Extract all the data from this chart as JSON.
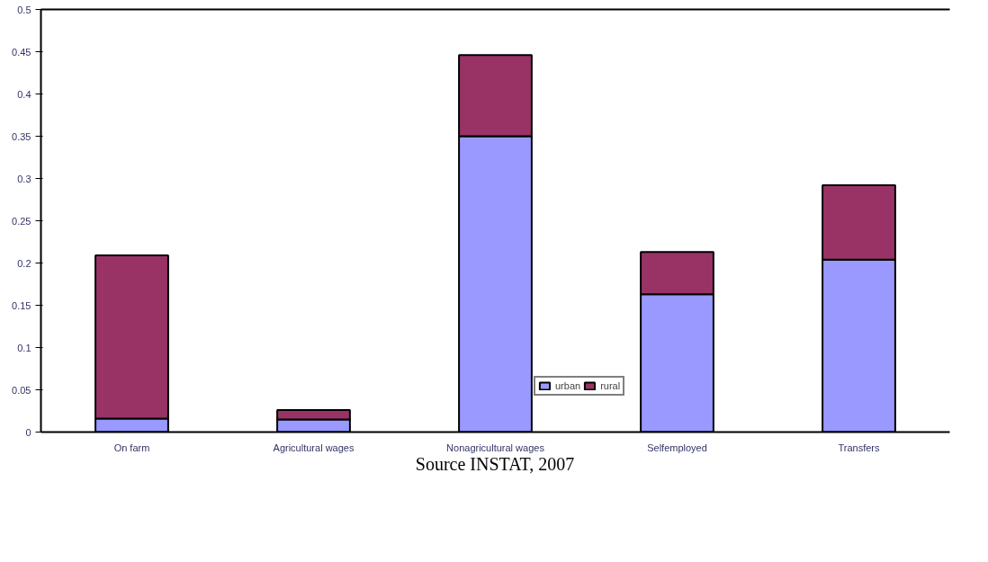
{
  "chart_data": {
    "type": "bar",
    "stacked": true,
    "categories": [
      "On farm",
      "Agricultural wages",
      "Nonagricultural wages",
      "Selfemployed",
      "Transfers"
    ],
    "series": [
      {
        "name": "urban",
        "color": "#9999ff",
        "values": [
          0.016,
          0.015,
          0.35,
          0.163,
          0.204
        ]
      },
      {
        "name": "rural",
        "color": "#993366",
        "values": [
          0.193,
          0.011,
          0.096,
          0.05,
          0.088
        ]
      }
    ],
    "ylim": [
      0,
      0.5
    ],
    "yticks": [
      0,
      0.05,
      0.1,
      0.15,
      0.2,
      0.25,
      0.3,
      0.35,
      0.4,
      0.45,
      0.5
    ],
    "grid": false,
    "legend": "bottom",
    "annotations": [
      "Source INSTAT, 2007"
    ]
  }
}
